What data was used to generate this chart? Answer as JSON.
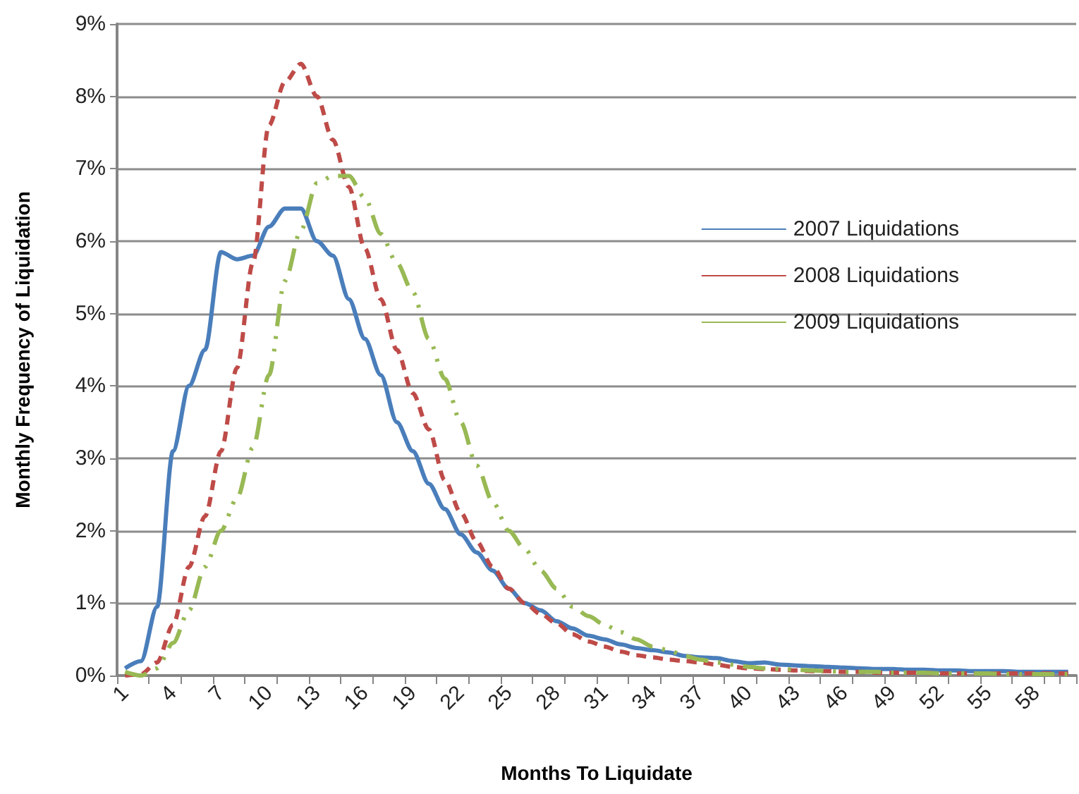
{
  "chart_data": {
    "type": "line",
    "xlabel": "Months To Liquidate",
    "ylabel": "Monthly Frequency of Liquidation",
    "categories": [
      "1",
      null,
      null,
      "4",
      null,
      null,
      "7",
      null,
      null,
      "10",
      null,
      null,
      "13",
      null,
      null,
      "16",
      null,
      null,
      "19",
      null,
      null,
      "22",
      null,
      null,
      "25",
      null,
      null,
      "28",
      null,
      null,
      "31",
      null,
      null,
      "34",
      null,
      null,
      "37",
      null,
      null,
      "40",
      null,
      null,
      "43",
      null,
      null,
      "46",
      null,
      null,
      "49",
      null,
      null,
      "52",
      null,
      null,
      "55",
      null,
      null,
      "58",
      null,
      null
    ],
    "series": [
      {
        "name": "2007 Liquidations",
        "color": "#4a7ebb",
        "line_style": "solid",
        "values": [
          0.1,
          0.2,
          0.95,
          3.1,
          4.0,
          4.5,
          5.85,
          5.75,
          5.8,
          6.2,
          6.45,
          6.45,
          6.0,
          5.8,
          5.2,
          4.65,
          4.15,
          3.5,
          3.1,
          2.65,
          2.3,
          1.95,
          1.7,
          1.45,
          1.2,
          1.0,
          0.9,
          0.75,
          0.65,
          0.55,
          0.5,
          0.43,
          0.38,
          0.35,
          0.32,
          0.27,
          0.25,
          0.24,
          0.2,
          0.17,
          0.18,
          0.15,
          0.14,
          0.13,
          0.12,
          0.11,
          0.1,
          0.09,
          0.09,
          0.08,
          0.08,
          0.07,
          0.07,
          0.06,
          0.06,
          0.06,
          0.05,
          0.05,
          0.05,
          0.05
        ]
      },
      {
        "name": "2008 Liquidations",
        "color": "#be4b48",
        "line_style": "dashed",
        "values": [
          0,
          0.02,
          0.18,
          0.7,
          1.5,
          2.2,
          3.1,
          4.25,
          5.7,
          7.6,
          8.2,
          8.45,
          8.0,
          7.4,
          6.75,
          5.9,
          5.2,
          4.5,
          3.9,
          3.4,
          2.7,
          2.25,
          1.85,
          1.5,
          1.2,
          1.0,
          0.85,
          0.72,
          0.57,
          0.47,
          0.4,
          0.33,
          0.28,
          0.25,
          0.22,
          0.2,
          0.18,
          0.15,
          0.12,
          0.1,
          0.09,
          0.08,
          0.07,
          0.06,
          0.06,
          0.05,
          0.05,
          0.04,
          0.04,
          0.04,
          0.04,
          0.03,
          0.03,
          0.03,
          0.03,
          0.03,
          0.03,
          0.03,
          0.03,
          0.03
        ]
      },
      {
        "name": "2009 Liquidations",
        "color": "#98b954",
        "line_style": "dotted",
        "values": [
          0.05,
          0,
          0.1,
          0.45,
          0.9,
          1.5,
          2.0,
          2.45,
          3.15,
          4.15,
          5.45,
          6.15,
          6.8,
          6.9,
          6.9,
          6.6,
          6.1,
          5.7,
          5.3,
          4.65,
          4.1,
          3.5,
          2.9,
          2.4,
          2.0,
          1.75,
          1.45,
          1.2,
          0.95,
          0.82,
          0.7,
          0.6,
          0.5,
          0.4,
          0.35,
          0.27,
          0.22,
          0.18,
          0.15,
          0.12,
          0.1,
          0.09,
          0.08,
          0.07,
          0.06,
          0.05,
          0.05,
          0.05,
          0.04,
          0.04,
          0.04,
          0.03,
          0.03,
          0.03,
          0.03,
          0.02,
          0.02,
          0.02,
          0.02,
          0.02
        ]
      }
    ],
    "ylim": [
      0,
      9
    ],
    "yticks": [
      {
        "value": 0,
        "label": "0%"
      },
      {
        "value": 1,
        "label": "1%"
      },
      {
        "value": 2,
        "label": "2%"
      },
      {
        "value": 3,
        "label": "3%"
      },
      {
        "value": 4,
        "label": "4%"
      },
      {
        "value": 5,
        "label": "5%"
      },
      {
        "value": 6,
        "label": "6%"
      },
      {
        "value": 7,
        "label": "7%"
      },
      {
        "value": 8,
        "label": "8%"
      },
      {
        "value": 9,
        "label": "9%"
      }
    ],
    "grid": "y",
    "legend": "right",
    "marker": "none"
  }
}
